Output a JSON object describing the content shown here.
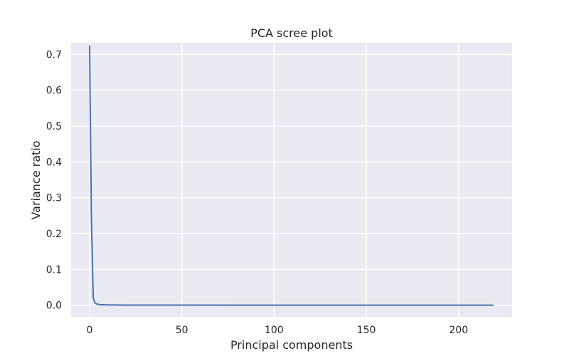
{
  "chart_data": {
    "type": "line",
    "title": "PCA scree plot",
    "xlabel": "Principal components",
    "ylabel": "Variance ratio",
    "xlim": [
      -10,
      229
    ],
    "ylim": [
      -0.0325,
      0.7325
    ],
    "x_ticks": [
      0,
      50,
      100,
      150,
      200
    ],
    "x_tick_labels": [
      "0",
      "50",
      "100",
      "150",
      "200"
    ],
    "y_ticks": [
      0.0,
      0.1,
      0.2,
      0.3,
      0.4,
      0.5,
      0.6,
      0.7
    ],
    "y_tick_labels": [
      "0.0",
      "0.1",
      "0.2",
      "0.3",
      "0.4",
      "0.5",
      "0.6",
      "0.7"
    ],
    "grid": true,
    "series": [
      {
        "color": "#4c72b0",
        "x": [
          0,
          1,
          2,
          3,
          4,
          5,
          6,
          7,
          8,
          10,
          15,
          20,
          50,
          100,
          150,
          200,
          219
        ],
        "values": [
          0.725,
          0.24,
          0.02,
          0.006,
          0.003,
          0.002,
          0.0015,
          0.0012,
          0.001,
          0.0008,
          0.0005,
          0.0004,
          0.0002,
          0.0001,
          5e-05,
          2e-05,
          1e-05
        ]
      }
    ],
    "colors": {
      "plot_background": "#eaeaf2",
      "grid": "#ffffff",
      "text": "#262626"
    }
  }
}
